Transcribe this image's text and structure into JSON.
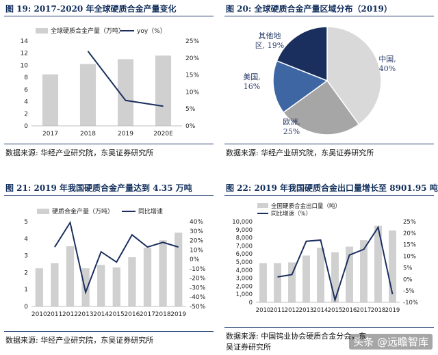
{
  "panels": [
    {
      "title": "图 19:  2017-2020 年全球硬质合金产量变化",
      "source": "数据来源:  华经产业研究院，东吴证券研究所"
    },
    {
      "title": "图 20:  全球硬质合金产量区域分布（2019）",
      "source": "数据来源:  华经产业研究院，东吴证券研究所"
    },
    {
      "title": "图 21:  2019 年我国硬质合金产量达到 4.35 万吨",
      "source": "数据来源:  华经产业研究院，东吴证券研究所"
    },
    {
      "title": "图 22:  2019 年我国硬质合金出口量增长至 8901.95 吨",
      "source": "数据来源:  中国钨业协会硬质合金分会，东吴证券研究所"
    }
  ],
  "watermark": "头条 @远瞻智库",
  "colors": {
    "bar": "#d0d0d0",
    "line": "#1b2f5e",
    "title": "#122f5c"
  },
  "chart_data": [
    {
      "type": "bar",
      "categories": [
        "2017",
        "2018",
        "2019",
        "2020E"
      ],
      "series": [
        {
          "name": "全球硬质合金产量（万吨）",
          "axis": "left",
          "kind": "bar",
          "values": [
            8.5,
            10.2,
            11.0,
            11.6
          ]
        },
        {
          "name": "yoy（%）",
          "axis": "right",
          "kind": "line",
          "values": [
            null,
            22.0,
            7.5,
            5.8
          ]
        }
      ],
      "ylim": [
        0,
        14
      ],
      "yticks": [
        "0",
        "2",
        "4",
        "6",
        "8",
        "10",
        "12",
        "14"
      ],
      "y2lim": [
        0,
        25
      ],
      "y2ticks": [
        "0%",
        "5%",
        "10%",
        "15%",
        "20%",
        "25%"
      ],
      "legend": "top"
    },
    {
      "type": "pie",
      "labels": [
        "中国",
        "欧洲",
        "美国",
        "其他地区"
      ],
      "display_labels": [
        [
          "中国,",
          "40%"
        ],
        [
          "欧洲,",
          "25%"
        ],
        [
          "美国,",
          "16%"
        ],
        [
          "其他地",
          "区, 19%"
        ]
      ],
      "values": [
        40,
        25,
        16,
        19
      ],
      "colors": [
        "#d9d9d9",
        "#a6a6a6",
        "#3e66a3",
        "#1b2f5e"
      ]
    },
    {
      "type": "bar",
      "categories": [
        "2010",
        "2011",
        "2012",
        "2013",
        "2014",
        "2015",
        "2016",
        "2017",
        "2018",
        "2019"
      ],
      "series": [
        {
          "name": "硬质合金产量（万吨）",
          "axis": "left",
          "kind": "bar",
          "values": [
            2.25,
            2.55,
            3.55,
            2.25,
            2.45,
            2.3,
            2.9,
            3.45,
            3.9,
            4.35
          ]
        },
        {
          "name": "同比增速",
          "axis": "right",
          "kind": "line",
          "values": [
            null,
            13,
            39,
            -35,
            8,
            -3,
            26,
            13,
            18,
            13
          ]
        }
      ],
      "ylim": [
        0,
        5
      ],
      "yticks": [
        "0",
        "1",
        "2",
        "3",
        "4",
        "5"
      ],
      "y2lim": [
        -50,
        40
      ],
      "y2ticks": [
        "-50%",
        "-40%",
        "-30%",
        "-20%",
        "-10%",
        "0%",
        "10%",
        "20%",
        "30%",
        "40%"
      ],
      "legend": "top"
    },
    {
      "type": "bar",
      "categories": [
        "2010",
        "2011",
        "2012",
        "2013",
        "2014",
        "2015",
        "2016",
        "2017",
        "2018",
        "2019"
      ],
      "series": [
        {
          "name": "全国硬质合金出口量（吨）",
          "axis": "left",
          "kind": "bar",
          "values": [
            4850,
            4850,
            4950,
            5800,
            6750,
            6200,
            6900,
            7700,
            9500,
            8901.95
          ]
        },
        {
          "name": "同比增速（%）",
          "axis": "right",
          "kind": "line",
          "values": [
            null,
            1,
            2,
            16.5,
            17,
            -9,
            10.5,
            13,
            22.5,
            -6.5
          ]
        }
      ],
      "ylim": [
        0,
        10000
      ],
      "yticks": [
        "0",
        "1,000",
        "2,000",
        "3,000",
        "4,000",
        "5,000",
        "6,000",
        "7,000",
        "8,000",
        "9,000",
        "10,000"
      ],
      "y2lim": [
        -10,
        25
      ],
      "y2ticks": [
        "-10%",
        "-5%",
        "0%",
        "5%",
        "10%",
        "15%",
        "20%",
        "25%"
      ],
      "legend": "top"
    }
  ]
}
